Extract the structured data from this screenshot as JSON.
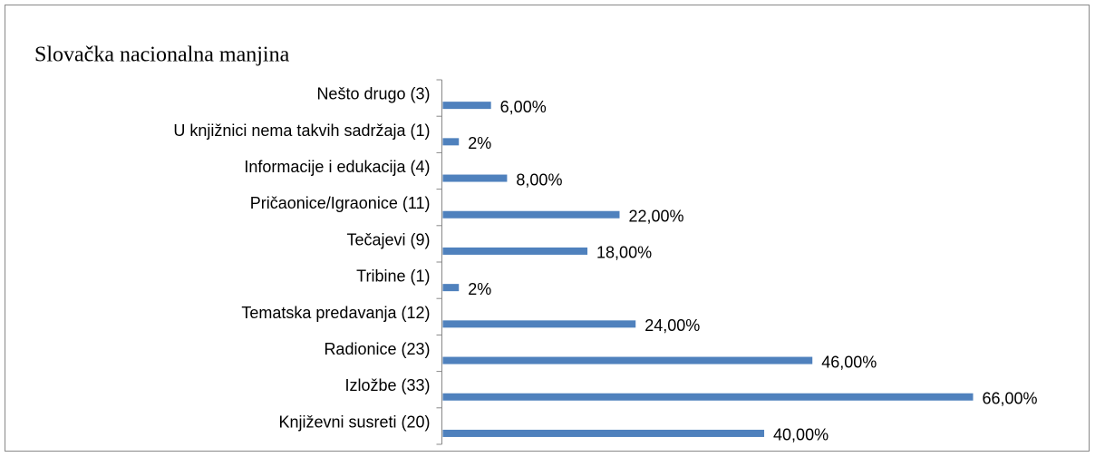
{
  "chart_data": {
    "type": "bar",
    "orientation": "horizontal",
    "title": "Slovačka nacionalna manjina",
    "categories": [
      "Nešto drugo (3)",
      "U knjižnici nema takvih sadržaja (1)",
      "Informacije i edukacija (4)",
      "Pričaonice/Igraonice (11)",
      "Tečajevi (9)",
      "Tribine (1)",
      "Tematska predavanja (12)",
      "Radionice (23)",
      "Izložbe (33)",
      "Književni susreti (20)"
    ],
    "values": [
      6,
      2,
      8,
      22,
      18,
      2,
      24,
      46,
      66,
      40
    ],
    "value_labels": [
      "6,00%",
      "2%",
      "8,00%",
      "22,00%",
      "18,00%",
      "2%",
      "24,00%",
      "46,00%",
      "66,00%",
      "40,00%"
    ],
    "color": "#4f81bd"
  }
}
